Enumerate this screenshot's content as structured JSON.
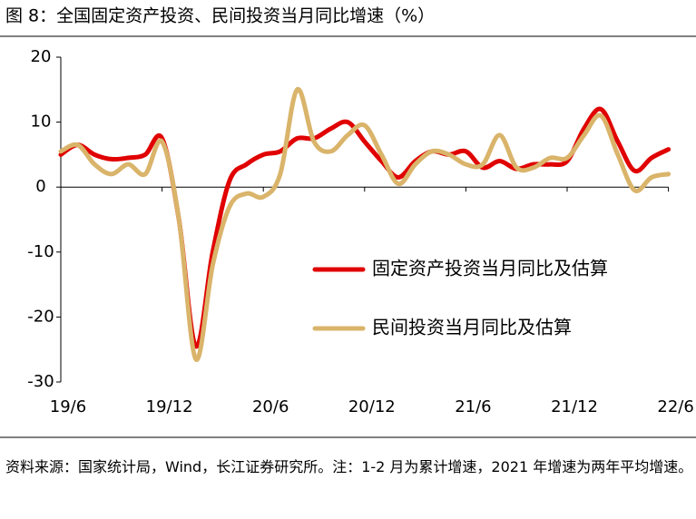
{
  "chart_data": {
    "type": "line",
    "title": "图 8：全国固定资产投资、民间投资当月同比增速（%）",
    "source": "资料来源：国家统计局，Wind，长江证券研究所。注：1-2 月为累计增速，2021 年增速为两年平均增速。",
    "categories": [
      "19/6",
      null,
      null,
      null,
      null,
      null,
      "19/12",
      null,
      null,
      null,
      null,
      null,
      "20/6",
      null,
      null,
      null,
      null,
      null,
      "20/12",
      null,
      null,
      null,
      null,
      null,
      "21/6",
      null,
      null,
      null,
      null,
      null,
      "21/12",
      null,
      null,
      null,
      null,
      null,
      "22/6"
    ],
    "series": [
      {
        "name": "固定资产投资当月同比及估算",
        "color": "#e00000",
        "values": [
          5.0,
          6.5,
          5.0,
          4.3,
          4.5,
          5.0,
          7.5,
          -5,
          -24.5,
          -10,
          1.0,
          3.5,
          5,
          5.5,
          7.5,
          7.5,
          9,
          10,
          7,
          4,
          1.5,
          4,
          5.5,
          5,
          5.5,
          3,
          4,
          2.8,
          3.5,
          3.5,
          4,
          9,
          12,
          7,
          2.5,
          4.5,
          5.8
        ]
      },
      {
        "name": "民间投资当月同比及估算",
        "color": "#d9b46a",
        "values": [
          5.5,
          6.5,
          3.5,
          2,
          3.5,
          2,
          7,
          -5,
          -26.5,
          -12,
          -3,
          -1,
          -1.5,
          2,
          15,
          7,
          5.5,
          8,
          9.5,
          5,
          0.5,
          3.5,
          5.5,
          5,
          3.5,
          3.5,
          8,
          3,
          3,
          4.5,
          4.5,
          8,
          11,
          5,
          -0.5,
          1.5,
          2
        ]
      }
    ],
    "ylim": [
      -30,
      20
    ],
    "yticks": [
      -30,
      -20,
      -10,
      0,
      10,
      20
    ],
    "legend": "right"
  }
}
